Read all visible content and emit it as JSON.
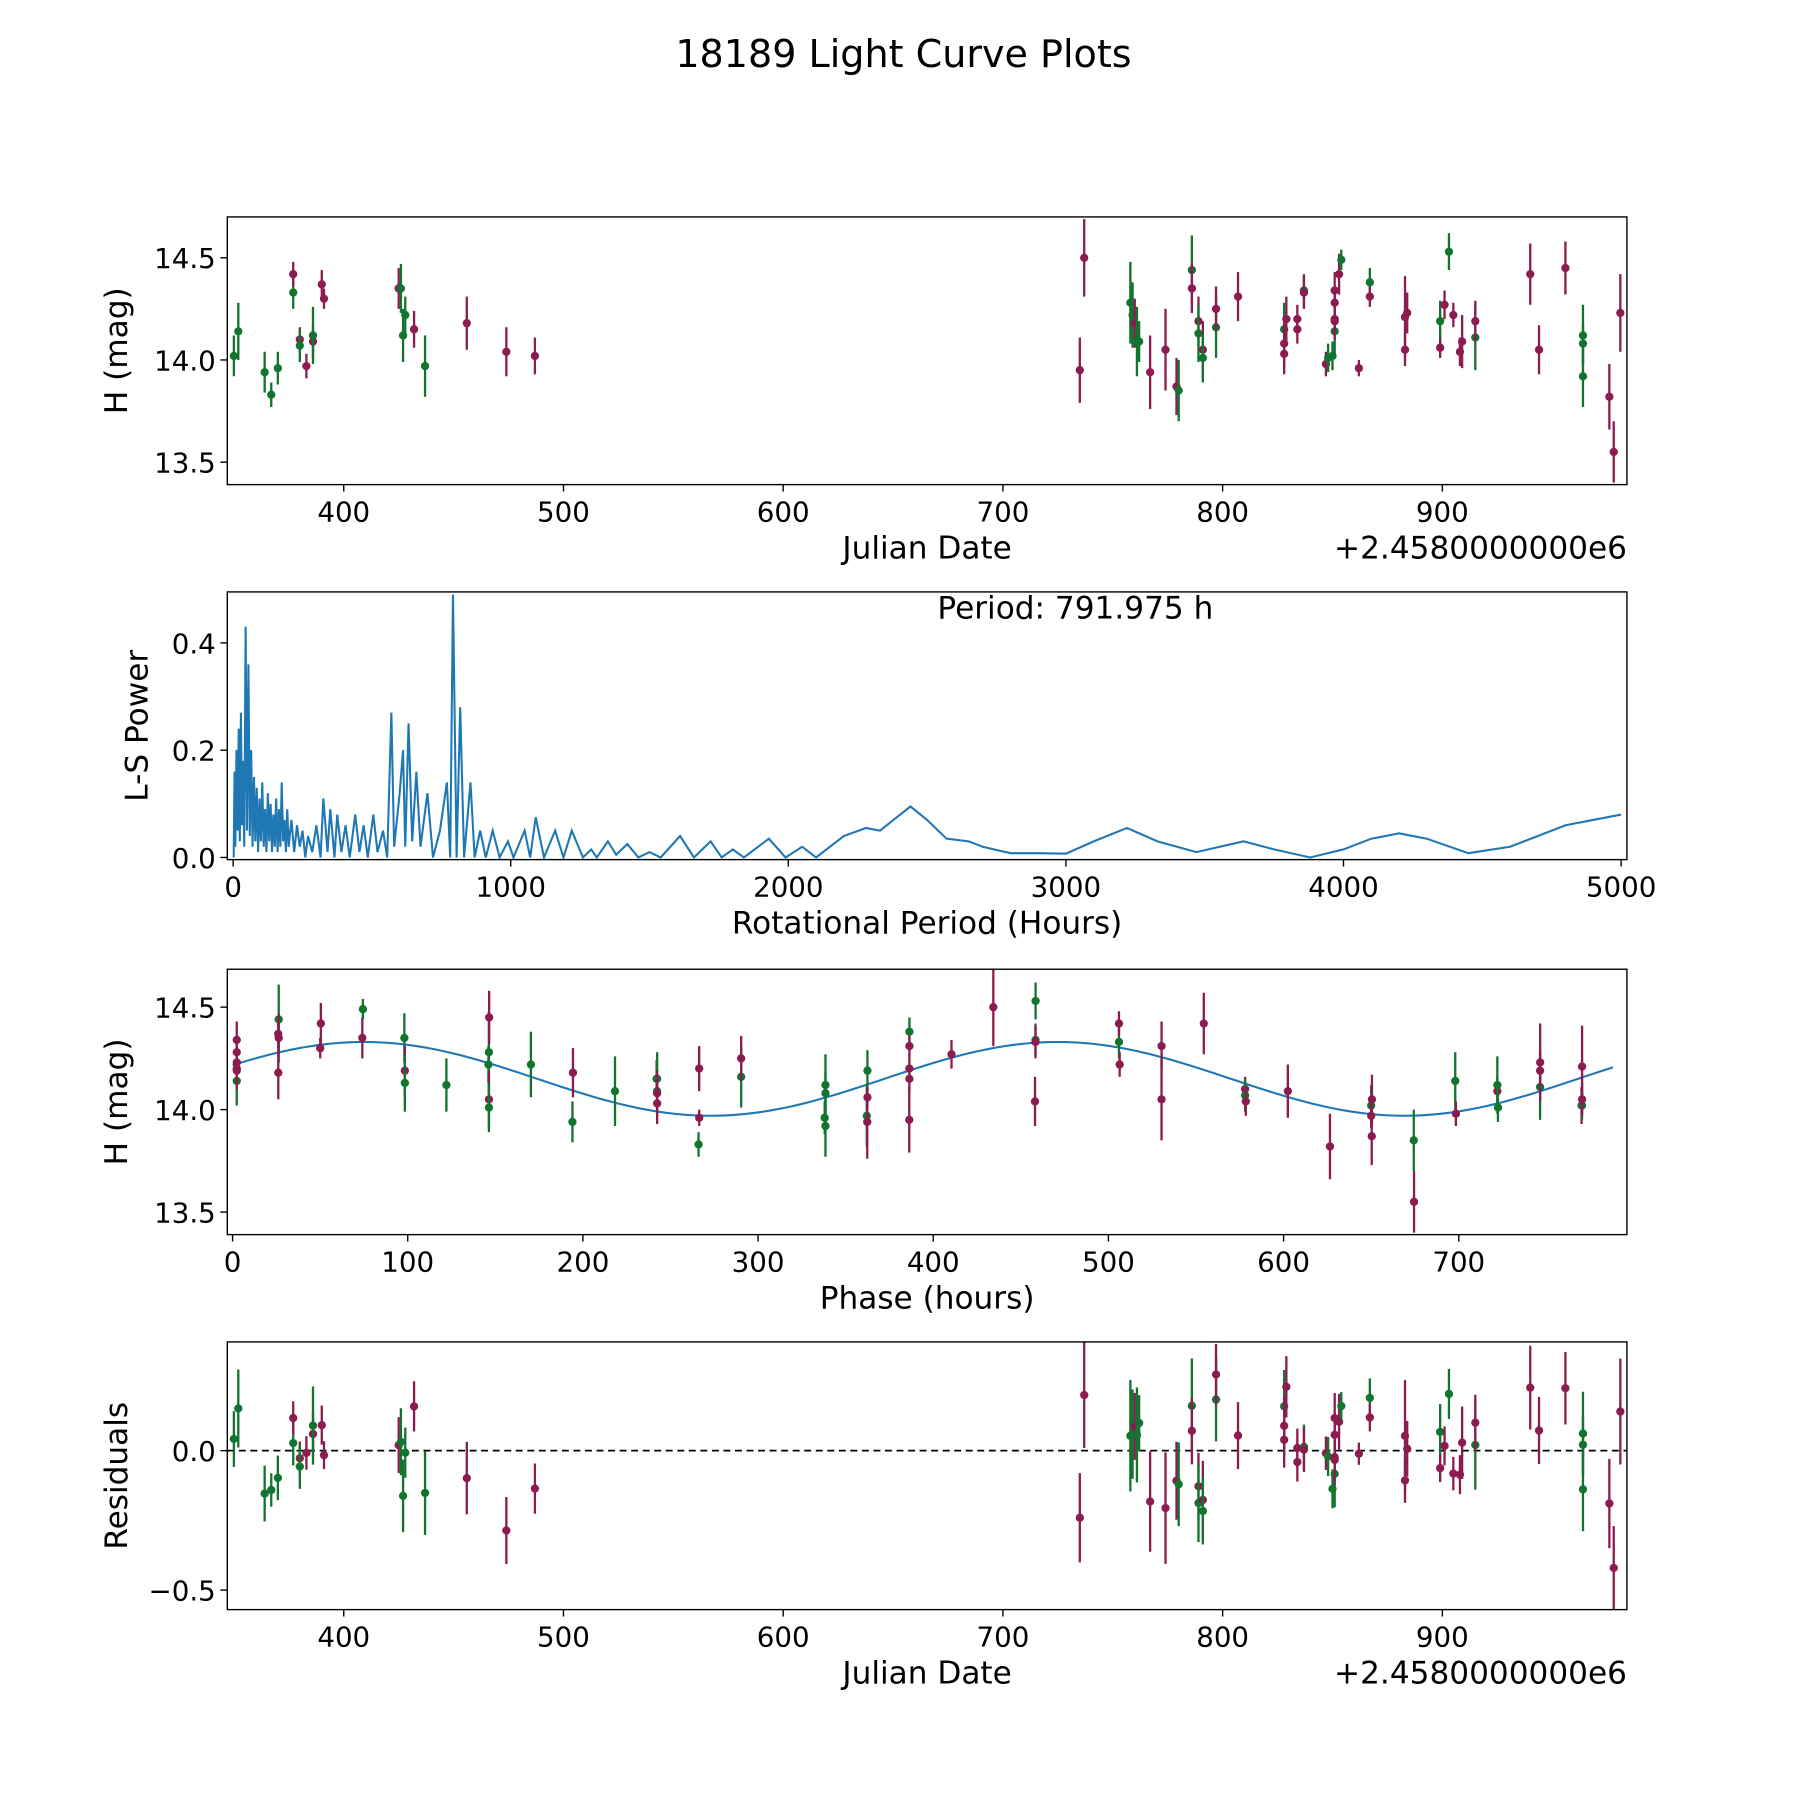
{
  "title": "18189 Light Curve Plots",
  "colors": {
    "green": "#11752f",
    "magenta": "#8c1c50",
    "line": "#1f77b4"
  },
  "chart_data": [
    {
      "type": "scatter",
      "name": "light-curve",
      "xlabel": "Julian Date",
      "ylabel": "H (mag)",
      "offset_text": "+2.4580000000e6",
      "xlim": [
        347,
        984
      ],
      "ylim": [
        13.39,
        14.7
      ],
      "xticks": [
        400,
        500,
        600,
        700,
        800,
        900
      ],
      "yticks": [
        13.5,
        14.0,
        14.5
      ],
      "ytick_labels": [
        "13.5",
        "14.0",
        "14.5"
      ],
      "points_format": [
        "jd_minus_2458000",
        "H_mag",
        "error",
        "color"
      ],
      "points": [
        [
          350,
          14.02,
          0.1,
          "green"
        ],
        [
          352,
          14.14,
          0.14,
          "green"
        ],
        [
          364,
          13.94,
          0.1,
          "green"
        ],
        [
          367,
          13.83,
          0.06,
          "green"
        ],
        [
          370,
          13.96,
          0.08,
          "green"
        ],
        [
          377,
          14.33,
          0.08,
          "green"
        ],
        [
          377,
          14.42,
          0.06,
          "magenta"
        ],
        [
          380,
          14.1,
          0.06,
          "magenta"
        ],
        [
          380,
          14.07,
          0.08,
          "green"
        ],
        [
          383,
          13.97,
          0.06,
          "magenta"
        ],
        [
          386,
          14.09,
          0.08,
          "magenta"
        ],
        [
          386,
          14.12,
          0.14,
          "green"
        ],
        [
          390,
          14.37,
          0.07,
          "magenta"
        ],
        [
          391,
          14.3,
          0.05,
          "magenta"
        ],
        [
          425,
          14.35,
          0.1,
          "magenta"
        ],
        [
          426,
          14.35,
          0.12,
          "green"
        ],
        [
          427,
          14.12,
          0.13,
          "green"
        ],
        [
          428,
          14.22,
          0.09,
          "green"
        ],
        [
          432,
          14.15,
          0.09,
          "magenta"
        ],
        [
          437,
          13.97,
          0.15,
          "green"
        ],
        [
          456,
          14.18,
          0.13,
          "magenta"
        ],
        [
          474,
          14.04,
          0.12,
          "magenta"
        ],
        [
          487,
          14.02,
          0.09,
          "magenta"
        ],
        [
          735,
          13.95,
          0.16,
          "magenta"
        ],
        [
          737,
          14.5,
          0.19,
          "magenta"
        ],
        [
          758,
          14.28,
          0.2,
          "green"
        ],
        [
          759,
          14.22,
          0.16,
          "green"
        ],
        [
          760,
          14.18,
          0.12,
          "magenta"
        ],
        [
          761,
          14.09,
          0.17,
          "green"
        ],
        [
          762,
          14.09,
          0.1,
          "green"
        ],
        [
          767,
          13.94,
          0.18,
          "magenta"
        ],
        [
          774,
          14.05,
          0.2,
          "magenta"
        ],
        [
          779,
          13.87,
          0.14,
          "magenta"
        ],
        [
          780,
          13.85,
          0.15,
          "green"
        ],
        [
          786,
          14.44,
          0.17,
          "green"
        ],
        [
          786,
          14.35,
          0.12,
          "magenta"
        ],
        [
          789,
          14.19,
          0.12,
          "magenta"
        ],
        [
          789,
          14.13,
          0.14,
          "green"
        ],
        [
          791,
          14.05,
          0.14,
          "magenta"
        ],
        [
          791,
          14.01,
          0.12,
          "green"
        ],
        [
          797,
          14.16,
          0.15,
          "green"
        ],
        [
          797,
          14.25,
          0.11,
          "magenta"
        ],
        [
          807,
          14.31,
          0.12,
          "magenta"
        ],
        [
          828,
          14.15,
          0.13,
          "green"
        ],
        [
          828,
          14.08,
          0.11,
          "magenta"
        ],
        [
          828,
          14.03,
          0.1,
          "magenta"
        ],
        [
          829,
          14.2,
          0.11,
          "magenta"
        ],
        [
          834,
          14.15,
          0.07,
          "magenta"
        ],
        [
          834,
          14.2,
          0.07,
          "magenta"
        ],
        [
          837,
          14.34,
          0.08,
          "green"
        ],
        [
          837,
          14.33,
          0.08,
          "magenta"
        ],
        [
          847,
          13.98,
          0.06,
          "magenta"
        ],
        [
          848,
          14.01,
          0.07,
          "green"
        ],
        [
          850,
          14.02,
          0.07,
          "green"
        ],
        [
          851,
          14.14,
          0.12,
          "green"
        ],
        [
          851,
          14.19,
          0.09,
          "magenta"
        ],
        [
          851,
          14.2,
          0.07,
          "magenta"
        ],
        [
          851,
          14.28,
          0.08,
          "magenta"
        ],
        [
          851,
          14.34,
          0.09,
          "magenta"
        ],
        [
          853,
          14.42,
          0.1,
          "magenta"
        ],
        [
          854,
          14.49,
          0.05,
          "green"
        ],
        [
          862,
          13.96,
          0.04,
          "magenta"
        ],
        [
          867,
          14.38,
          0.07,
          "green"
        ],
        [
          867,
          14.31,
          0.05,
          "magenta"
        ],
        [
          883,
          14.05,
          0.08,
          "magenta"
        ],
        [
          883,
          14.21,
          0.2,
          "magenta"
        ],
        [
          884,
          14.23,
          0.1,
          "magenta"
        ],
        [
          899,
          14.19,
          0.1,
          "green"
        ],
        [
          899,
          14.06,
          0.05,
          "magenta"
        ],
        [
          901,
          14.27,
          0.07,
          "magenta"
        ],
        [
          903,
          14.53,
          0.09,
          "green"
        ],
        [
          905,
          14.22,
          0.06,
          "magenta"
        ],
        [
          908,
          14.04,
          0.07,
          "magenta"
        ],
        [
          909,
          14.09,
          0.13,
          "magenta"
        ],
        [
          915,
          14.11,
          0.16,
          "green"
        ],
        [
          915,
          14.19,
          0.1,
          "magenta"
        ],
        [
          940,
          14.42,
          0.15,
          "magenta"
        ],
        [
          944,
          14.05,
          0.12,
          "magenta"
        ],
        [
          956,
          14.45,
          0.13,
          "magenta"
        ],
        [
          964,
          14.12,
          0.15,
          "green"
        ],
        [
          964,
          14.08,
          0.1,
          "green"
        ],
        [
          964,
          13.92,
          0.15,
          "green"
        ],
        [
          976,
          13.82,
          0.16,
          "magenta"
        ],
        [
          978,
          13.55,
          0.15,
          "magenta"
        ],
        [
          981,
          14.23,
          0.19,
          "magenta"
        ]
      ]
    },
    {
      "type": "line",
      "name": "periodogram",
      "xlabel": "Rotational Period (Hours)",
      "ylabel": "L-S Power",
      "annotation": "Period: 791.975 h",
      "xlim": [
        -21,
        5021
      ],
      "ylim": [
        -0.004,
        0.495
      ],
      "xticks": [
        0,
        1000,
        2000,
        3000,
        4000,
        5000
      ],
      "yticks": [
        0.0,
        0.2,
        0.4
      ],
      "ytick_labels": [
        "0.0",
        "0.2",
        "0.4"
      ],
      "points": [
        [
          2,
          0.0
        ],
        [
          5,
          0.16
        ],
        [
          8,
          0.02
        ],
        [
          12,
          0.2
        ],
        [
          16,
          0.05
        ],
        [
          20,
          0.24
        ],
        [
          24,
          0.03
        ],
        [
          28,
          0.27
        ],
        [
          32,
          0.06
        ],
        [
          36,
          0.18
        ],
        [
          40,
          0.02
        ],
        [
          45,
          0.43
        ],
        [
          50,
          0.05
        ],
        [
          55,
          0.36
        ],
        [
          60,
          0.04
        ],
        [
          65,
          0.2
        ],
        [
          70,
          0.02
        ],
        [
          75,
          0.15
        ],
        [
          80,
          0.03
        ],
        [
          85,
          0.13
        ],
        [
          90,
          0.01
        ],
        [
          95,
          0.11
        ],
        [
          100,
          0.03
        ],
        [
          105,
          0.14
        ],
        [
          110,
          0.02
        ],
        [
          115,
          0.09
        ],
        [
          120,
          0.01
        ],
        [
          125,
          0.12
        ],
        [
          130,
          0.03
        ],
        [
          135,
          0.1
        ],
        [
          140,
          0.01
        ],
        [
          145,
          0.08
        ],
        [
          150,
          0.02
        ],
        [
          155,
          0.11
        ],
        [
          160,
          0.01
        ],
        [
          165,
          0.09
        ],
        [
          170,
          0.02
        ],
        [
          175,
          0.14
        ],
        [
          180,
          0.03
        ],
        [
          185,
          0.07
        ],
        [
          190,
          0.01
        ],
        [
          195,
          0.09
        ],
        [
          200,
          0.02
        ],
        [
          210,
          0.07
        ],
        [
          220,
          0.01
        ],
        [
          230,
          0.06
        ],
        [
          240,
          0.02
        ],
        [
          250,
          0.05
        ],
        [
          260,
          0.0
        ],
        [
          270,
          0.04
        ],
        [
          285,
          0.01
        ],
        [
          300,
          0.06
        ],
        [
          315,
          0.0
        ],
        [
          325,
          0.11
        ],
        [
          340,
          0.01
        ],
        [
          350,
          0.09
        ],
        [
          365,
          0.0
        ],
        [
          375,
          0.08
        ],
        [
          390,
          0.01
        ],
        [
          405,
          0.06
        ],
        [
          420,
          0.0
        ],
        [
          440,
          0.08
        ],
        [
          455,
          0.01
        ],
        [
          470,
          0.06
        ],
        [
          485,
          0.0
        ],
        [
          505,
          0.08
        ],
        [
          520,
          0.01
        ],
        [
          540,
          0.05
        ],
        [
          555,
          0.0
        ],
        [
          570,
          0.27
        ],
        [
          580,
          0.02
        ],
        [
          600,
          0.12
        ],
        [
          612,
          0.2
        ],
        [
          620,
          0.02
        ],
        [
          632,
          0.25
        ],
        [
          645,
          0.03
        ],
        [
          660,
          0.16
        ],
        [
          675,
          0.02
        ],
        [
          700,
          0.12
        ],
        [
          720,
          0.0
        ],
        [
          745,
          0.05
        ],
        [
          770,
          0.14
        ],
        [
          782,
          0.0
        ],
        [
          792,
          0.49
        ],
        [
          805,
          0.0
        ],
        [
          818,
          0.28
        ],
        [
          832,
          0.0
        ],
        [
          855,
          0.14
        ],
        [
          870,
          0.0
        ],
        [
          890,
          0.05
        ],
        [
          910,
          0.0
        ],
        [
          935,
          0.05
        ],
        [
          960,
          0.0
        ],
        [
          990,
          0.03
        ],
        [
          1010,
          0.0
        ],
        [
          1050,
          0.05
        ],
        [
          1070,
          0.0
        ],
        [
          1090,
          0.075
        ],
        [
          1120,
          0.0
        ],
        [
          1160,
          0.05
        ],
        [
          1190,
          0.0
        ],
        [
          1220,
          0.05
        ],
        [
          1260,
          0.0
        ],
        [
          1290,
          0.015
        ],
        [
          1310,
          0.0
        ],
        [
          1350,
          0.03
        ],
        [
          1380,
          0.005
        ],
        [
          1420,
          0.025
        ],
        [
          1460,
          0.0
        ],
        [
          1500,
          0.01
        ],
        [
          1540,
          0.0
        ],
        [
          1610,
          0.04
        ],
        [
          1660,
          0.0
        ],
        [
          1720,
          0.03
        ],
        [
          1760,
          0.0
        ],
        [
          1800,
          0.015
        ],
        [
          1840,
          0.0
        ],
        [
          1930,
          0.035
        ],
        [
          1990,
          0.0
        ],
        [
          2050,
          0.02
        ],
        [
          2100,
          0.0
        ],
        [
          2200,
          0.04
        ],
        [
          2280,
          0.055
        ],
        [
          2330,
          0.05
        ],
        [
          2440,
          0.095
        ],
        [
          2500,
          0.07
        ],
        [
          2570,
          0.035
        ],
        [
          2650,
          0.03
        ],
        [
          2700,
          0.02
        ],
        [
          2800,
          0.008
        ],
        [
          2900,
          0.008
        ],
        [
          3000,
          0.007
        ],
        [
          3100,
          0.03
        ],
        [
          3220,
          0.055
        ],
        [
          3330,
          0.03
        ],
        [
          3470,
          0.01
        ],
        [
          3640,
          0.03
        ],
        [
          3750,
          0.015
        ],
        [
          3880,
          0.0
        ],
        [
          4000,
          0.015
        ],
        [
          4100,
          0.035
        ],
        [
          4200,
          0.045
        ],
        [
          4300,
          0.035
        ],
        [
          4450,
          0.008
        ],
        [
          4600,
          0.02
        ],
        [
          4800,
          0.06
        ],
        [
          5000,
          0.08
        ]
      ]
    },
    {
      "type": "scatter",
      "name": "phased-light-curve",
      "xlabel": "Phase (hours)",
      "ylabel": "H (mag)",
      "xlim": [
        -3,
        796
      ],
      "ylim": [
        13.39,
        14.685
      ],
      "xticks": [
        0,
        100,
        200,
        300,
        400,
        500,
        600,
        700
      ],
      "yticks": [
        13.5,
        14.0,
        14.5
      ],
      "ytick_labels": [
        "13.5",
        "14.0",
        "14.5"
      ],
      "period_hours": 791.975,
      "phase_shift_hours": 650,
      "fit": {
        "mean": 14.15,
        "amplitude": 0.18,
        "peak_phase": 75,
        "harmonic_period": 395.99
      }
    },
    {
      "type": "scatter",
      "name": "residuals",
      "xlabel": "Julian Date",
      "ylabel": "Residuals",
      "offset_text": "+2.4580000000e6",
      "xlim": [
        347,
        984
      ],
      "ylim": [
        -0.57,
        0.39
      ],
      "xticks": [
        400,
        500,
        600,
        700,
        800,
        900
      ],
      "yticks": [
        -0.5,
        0.0
      ],
      "ytick_labels": [
        "−0.5",
        "0.0"
      ]
    }
  ]
}
